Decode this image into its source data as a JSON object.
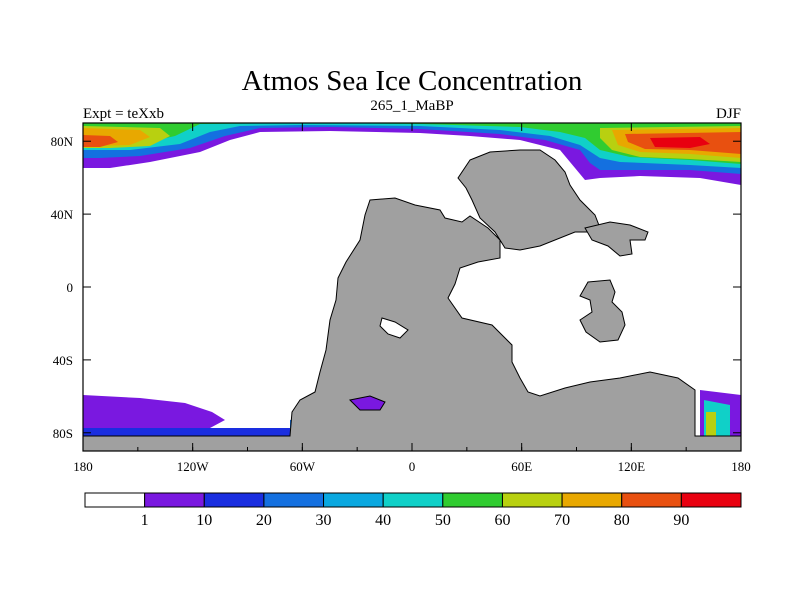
{
  "chart_data": {
    "type": "heatmap",
    "title": "Atmos Sea Ice Concentration",
    "subtitle": "265_1_MaBP",
    "left_label": "Expt = teXxb",
    "right_label": "DJF",
    "x_ticks": [
      "180",
      "120W",
      "60W",
      "0",
      "60E",
      "120E",
      "180"
    ],
    "y_ticks": [
      "80N",
      "40N",
      "0",
      "40S",
      "80S"
    ],
    "x_range": [
      -180,
      180
    ],
    "y_range": [
      -90,
      90
    ],
    "land_color": "#a0a0a0",
    "colorbar": {
      "labels": [
        "1",
        "10",
        "20",
        "30",
        "40",
        "50",
        "60",
        "70",
        "80",
        "90"
      ],
      "colors": [
        "#ffffff",
        "#7a18e0",
        "#1a2ee0",
        "#1470e0",
        "#0aa8e0",
        "#10d0c8",
        "#30cc30",
        "#b8d010",
        "#e8a800",
        "#e85010",
        "#e80010"
      ]
    }
  }
}
